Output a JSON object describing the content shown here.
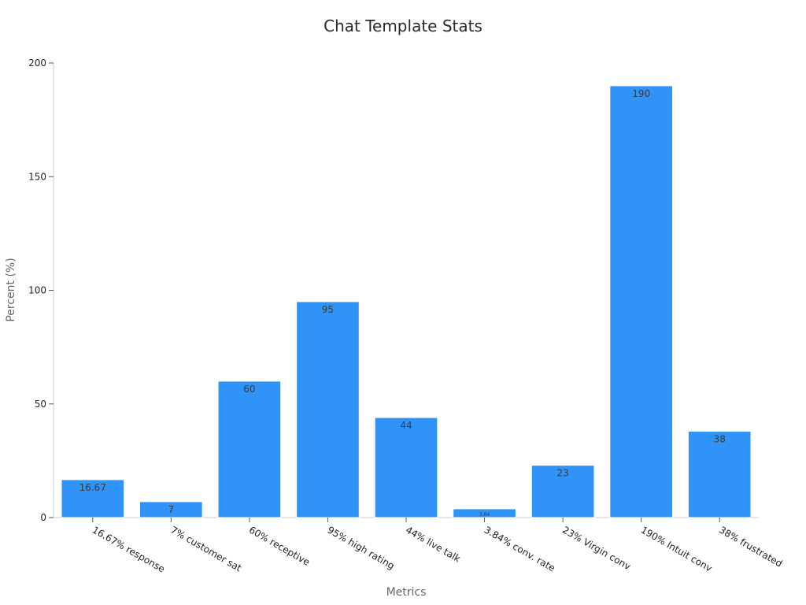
{
  "chart_data": {
    "type": "bar",
    "title": "Chat Template Stats",
    "xlabel": "Metrics",
    "ylabel": "Percent (%)",
    "categories": [
      "16.67% response",
      "7% customer sat",
      "60% receptive",
      "95% high rating",
      "44% live talk",
      "3.84% conv. rate",
      "23% Virgin conv",
      "190% Intuit conv",
      "38% frustrated"
    ],
    "values": [
      16.67,
      7,
      60,
      95,
      44,
      3.84,
      23,
      190,
      38
    ],
    "data_labels": [
      "16.67",
      "7",
      "60",
      "95",
      "44",
      "3.84",
      "23",
      "190",
      "38"
    ],
    "ylim": [
      0,
      200
    ],
    "yticks": [
      0,
      50,
      100,
      150,
      200
    ],
    "grid": false,
    "bar_color": "#2f93f7"
  }
}
